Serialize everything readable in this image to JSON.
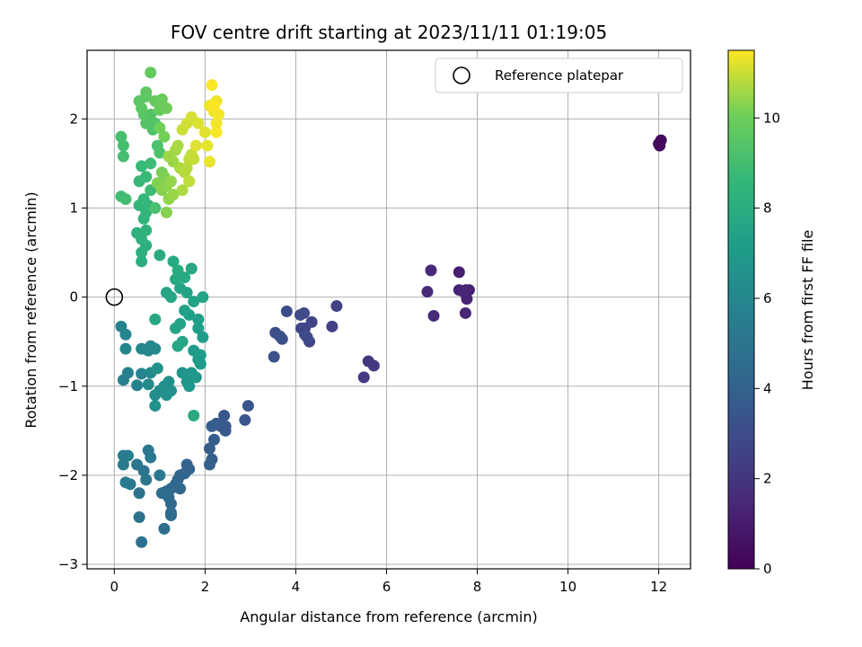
{
  "chart_data": {
    "type": "scatter",
    "title": "FOV centre drift starting at 2023/11/11 01:19:05",
    "xlabel": "Angular distance from reference (arcmin)",
    "ylabel": "Rotation from reference (arcmin)",
    "xlim": [
      -0.6,
      12.7
    ],
    "ylim": [
      -3.05,
      2.77
    ],
    "xticks": [
      0,
      2,
      4,
      6,
      8,
      10,
      12
    ],
    "yticks": [
      -3,
      -2,
      -1,
      0,
      1,
      2
    ],
    "grid": true,
    "legend": {
      "position": "top-right",
      "entries": [
        "Reference platepar"
      ]
    },
    "reference_point": {
      "x": 0,
      "y": 0
    },
    "colorbar": {
      "label": "Hours from first FF file",
      "colormap": "viridis",
      "range": [
        0,
        11.5
      ],
      "ticks": [
        0,
        2,
        4,
        6,
        8,
        10
      ]
    },
    "points": [
      {
        "x": 12.0,
        "y": 1.72,
        "h": 0.2
      },
      {
        "x": 12.05,
        "y": 1.76,
        "h": 0.25
      },
      {
        "x": 12.02,
        "y": 1.7,
        "h": 0.3
      },
      {
        "x": 7.6,
        "y": 0.28,
        "h": 1.1
      },
      {
        "x": 7.75,
        "y": 0.08,
        "h": 1.15
      },
      {
        "x": 7.82,
        "y": 0.08,
        "h": 1.2
      },
      {
        "x": 7.6,
        "y": 0.08,
        "h": 1.25
      },
      {
        "x": 7.77,
        "y": -0.02,
        "h": 1.3
      },
      {
        "x": 7.7,
        "y": 0.06,
        "h": 1.35
      },
      {
        "x": 7.74,
        "y": -0.18,
        "h": 1.4
      },
      {
        "x": 6.98,
        "y": 0.3,
        "h": 1.5
      },
      {
        "x": 6.9,
        "y": 0.06,
        "h": 1.55
      },
      {
        "x": 7.04,
        "y": -0.21,
        "h": 1.6
      },
      {
        "x": 5.6,
        "y": -0.72,
        "h": 2.1
      },
      {
        "x": 5.72,
        "y": -0.77,
        "h": 2.15
      },
      {
        "x": 5.5,
        "y": -0.9,
        "h": 2.2
      },
      {
        "x": 4.9,
        "y": -0.1,
        "h": 2.5
      },
      {
        "x": 4.8,
        "y": -0.33,
        "h": 2.55
      },
      {
        "x": 4.35,
        "y": -0.28,
        "h": 2.6
      },
      {
        "x": 4.2,
        "y": -0.35,
        "h": 2.65
      },
      {
        "x": 4.3,
        "y": -0.5,
        "h": 2.7
      },
      {
        "x": 4.12,
        "y": -0.35,
        "h": 2.75
      },
      {
        "x": 4.18,
        "y": -0.18,
        "h": 2.8
      },
      {
        "x": 4.2,
        "y": -0.42,
        "h": 2.85
      },
      {
        "x": 4.25,
        "y": -0.45,
        "h": 2.9
      },
      {
        "x": 4.1,
        "y": -0.2,
        "h": 2.95
      },
      {
        "x": 3.8,
        "y": -0.16,
        "h": 3.0
      },
      {
        "x": 3.55,
        "y": -0.4,
        "h": 3.05
      },
      {
        "x": 3.7,
        "y": -0.47,
        "h": 3.1
      },
      {
        "x": 3.65,
        "y": -0.44,
        "h": 3.15
      },
      {
        "x": 3.52,
        "y": -0.67,
        "h": 3.2
      },
      {
        "x": 2.95,
        "y": -1.22,
        "h": 3.4
      },
      {
        "x": 2.88,
        "y": -1.38,
        "h": 3.45
      },
      {
        "x": 2.42,
        "y": -1.33,
        "h": 3.5
      },
      {
        "x": 2.45,
        "y": -1.45,
        "h": 3.55
      },
      {
        "x": 2.45,
        "y": -1.5,
        "h": 3.6
      },
      {
        "x": 2.35,
        "y": -1.45,
        "h": 3.65
      },
      {
        "x": 2.25,
        "y": -1.42,
        "h": 3.7
      },
      {
        "x": 2.15,
        "y": -1.45,
        "h": 3.75
      },
      {
        "x": 2.2,
        "y": -1.6,
        "h": 3.8
      },
      {
        "x": 2.1,
        "y": -1.7,
        "h": 3.85
      },
      {
        "x": 2.15,
        "y": -1.82,
        "h": 3.9
      },
      {
        "x": 2.1,
        "y": -1.88,
        "h": 3.95
      },
      {
        "x": 1.6,
        "y": -1.88,
        "h": 4.0
      },
      {
        "x": 1.65,
        "y": -1.93,
        "h": 4.05
      },
      {
        "x": 1.55,
        "y": -1.98,
        "h": 4.1
      },
      {
        "x": 1.45,
        "y": -2.0,
        "h": 4.15
      },
      {
        "x": 1.4,
        "y": -2.05,
        "h": 4.2
      },
      {
        "x": 1.45,
        "y": -2.15,
        "h": 4.25
      },
      {
        "x": 1.35,
        "y": -2.1,
        "h": 4.3
      },
      {
        "x": 1.25,
        "y": -2.15,
        "h": 4.35
      },
      {
        "x": 1.15,
        "y": -2.18,
        "h": 4.4
      },
      {
        "x": 1.2,
        "y": -2.25,
        "h": 4.45
      },
      {
        "x": 1.25,
        "y": -2.32,
        "h": 4.5
      },
      {
        "x": 1.25,
        "y": -2.42,
        "h": 4.55
      },
      {
        "x": 1.25,
        "y": -2.45,
        "h": 4.6
      },
      {
        "x": 1.05,
        "y": -2.2,
        "h": 4.65
      },
      {
        "x": 1.1,
        "y": -2.6,
        "h": 4.7
      },
      {
        "x": 0.6,
        "y": -2.75,
        "h": 4.8
      },
      {
        "x": 0.55,
        "y": -2.47,
        "h": 4.85
      },
      {
        "x": 0.55,
        "y": -2.2,
        "h": 4.9
      },
      {
        "x": 0.65,
        "y": -1.95,
        "h": 4.95
      },
      {
        "x": 0.7,
        "y": -2.05,
        "h": 5.0
      },
      {
        "x": 0.5,
        "y": -1.88,
        "h": 5.05
      },
      {
        "x": 0.75,
        "y": -1.72,
        "h": 5.1
      },
      {
        "x": 0.8,
        "y": -1.8,
        "h": 5.15
      },
      {
        "x": 1.0,
        "y": -2.0,
        "h": 5.2
      },
      {
        "x": 0.35,
        "y": -2.1,
        "h": 5.25
      },
      {
        "x": 0.25,
        "y": -2.08,
        "h": 5.3
      },
      {
        "x": 0.2,
        "y": -1.88,
        "h": 5.35
      },
      {
        "x": 0.2,
        "y": -1.78,
        "h": 5.4
      },
      {
        "x": 0.3,
        "y": -1.78,
        "h": 5.45
      },
      {
        "x": 0.2,
        "y": -0.93,
        "h": 5.6
      },
      {
        "x": 0.3,
        "y": -0.85,
        "h": 5.65
      },
      {
        "x": 0.5,
        "y": -0.99,
        "h": 5.7
      },
      {
        "x": 0.6,
        "y": -0.86,
        "h": 5.75
      },
      {
        "x": 0.15,
        "y": -0.33,
        "h": 5.8
      },
      {
        "x": 0.25,
        "y": -0.42,
        "h": 5.85
      },
      {
        "x": 0.25,
        "y": -0.58,
        "h": 5.9
      },
      {
        "x": 0.6,
        "y": -0.58,
        "h": 5.95
      },
      {
        "x": 0.75,
        "y": -0.6,
        "h": 6.0
      },
      {
        "x": 0.8,
        "y": -0.55,
        "h": 6.05
      },
      {
        "x": 0.9,
        "y": -0.58,
        "h": 6.1
      },
      {
        "x": 0.8,
        "y": -0.85,
        "h": 6.15
      },
      {
        "x": 0.75,
        "y": -0.98,
        "h": 6.2
      },
      {
        "x": 0.9,
        "y": -1.1,
        "h": 6.25
      },
      {
        "x": 1.0,
        "y": -1.05,
        "h": 6.3
      },
      {
        "x": 1.1,
        "y": -1.0,
        "h": 6.35
      },
      {
        "x": 1.2,
        "y": -0.95,
        "h": 6.4
      },
      {
        "x": 1.15,
        "y": -1.1,
        "h": 6.45
      },
      {
        "x": 1.25,
        "y": -1.05,
        "h": 6.5
      },
      {
        "x": 0.95,
        "y": -0.8,
        "h": 6.55
      },
      {
        "x": 0.9,
        "y": -1.22,
        "h": 6.6
      },
      {
        "x": 1.5,
        "y": -0.85,
        "h": 6.7
      },
      {
        "x": 1.6,
        "y": -0.95,
        "h": 6.75
      },
      {
        "x": 1.65,
        "y": -1.0,
        "h": 6.8
      },
      {
        "x": 1.7,
        "y": -0.85,
        "h": 6.85
      },
      {
        "x": 1.8,
        "y": -0.9,
        "h": 6.9
      },
      {
        "x": 1.85,
        "y": -0.7,
        "h": 6.95
      },
      {
        "x": 1.75,
        "y": -0.6,
        "h": 7.0
      },
      {
        "x": 1.9,
        "y": -0.75,
        "h": 7.05
      },
      {
        "x": 1.9,
        "y": -0.65,
        "h": 7.1
      },
      {
        "x": 1.95,
        "y": -0.45,
        "h": 7.15
      },
      {
        "x": 1.85,
        "y": -0.35,
        "h": 7.2
      },
      {
        "x": 1.85,
        "y": -0.25,
        "h": 7.25
      },
      {
        "x": 1.65,
        "y": -0.2,
        "h": 7.3
      },
      {
        "x": 1.55,
        "y": -0.15,
        "h": 7.35
      },
      {
        "x": 1.75,
        "y": -0.05,
        "h": 7.4
      },
      {
        "x": 1.95,
        "y": 0.0,
        "h": 7.45
      },
      {
        "x": 1.45,
        "y": -0.3,
        "h": 7.5
      },
      {
        "x": 1.35,
        "y": -0.35,
        "h": 7.55
      },
      {
        "x": 1.5,
        "y": -0.5,
        "h": 7.6
      },
      {
        "x": 1.4,
        "y": -0.55,
        "h": 7.65
      },
      {
        "x": 0.9,
        "y": -0.25,
        "h": 7.7
      },
      {
        "x": 1.75,
        "y": -1.33,
        "h": 7.8
      },
      {
        "x": 1.6,
        "y": 0.05,
        "h": 7.5
      },
      {
        "x": 1.45,
        "y": 0.1,
        "h": 7.55
      },
      {
        "x": 1.15,
        "y": 0.05,
        "h": 7.6
      },
      {
        "x": 1.25,
        "y": 0.0,
        "h": 7.65
      },
      {
        "x": 1.7,
        "y": 0.32,
        "h": 7.7
      },
      {
        "x": 1.55,
        "y": 0.22,
        "h": 7.75
      },
      {
        "x": 1.35,
        "y": 0.2,
        "h": 7.8
      },
      {
        "x": 1.3,
        "y": 0.4,
        "h": 7.85
      },
      {
        "x": 1.4,
        "y": 0.3,
        "h": 7.9
      },
      {
        "x": 1.0,
        "y": 0.47,
        "h": 8.0
      },
      {
        "x": 0.6,
        "y": 0.4,
        "h": 8.1
      },
      {
        "x": 0.6,
        "y": 0.5,
        "h": 8.15
      },
      {
        "x": 0.7,
        "y": 0.58,
        "h": 8.2
      },
      {
        "x": 0.5,
        "y": 0.72,
        "h": 8.25
      },
      {
        "x": 0.6,
        "y": 0.65,
        "h": 8.3
      },
      {
        "x": 0.7,
        "y": 0.75,
        "h": 8.35
      },
      {
        "x": 0.65,
        "y": 0.88,
        "h": 8.4
      },
      {
        "x": 0.7,
        "y": 0.95,
        "h": 8.45
      },
      {
        "x": 0.75,
        "y": 1.03,
        "h": 8.5
      },
      {
        "x": 0.55,
        "y": 1.03,
        "h": 8.55
      },
      {
        "x": 0.65,
        "y": 1.1,
        "h": 8.6
      },
      {
        "x": 0.55,
        "y": 1.3,
        "h": 8.65
      },
      {
        "x": 0.6,
        "y": 1.47,
        "h": 8.7
      },
      {
        "x": 0.7,
        "y": 1.35,
        "h": 8.75
      },
      {
        "x": 0.8,
        "y": 1.2,
        "h": 8.8
      },
      {
        "x": 0.8,
        "y": 1.5,
        "h": 8.85
      },
      {
        "x": 0.15,
        "y": 1.13,
        "h": 8.9
      },
      {
        "x": 0.25,
        "y": 1.1,
        "h": 8.95
      },
      {
        "x": 0.2,
        "y": 1.58,
        "h": 9.0
      },
      {
        "x": 0.2,
        "y": 1.7,
        "h": 9.05
      },
      {
        "x": 0.15,
        "y": 1.8,
        "h": 9.1
      },
      {
        "x": 0.9,
        "y": 1.0,
        "h": 9.15
      },
      {
        "x": 0.95,
        "y": 1.7,
        "h": 9.2
      },
      {
        "x": 1.0,
        "y": 1.62,
        "h": 9.25
      },
      {
        "x": 0.85,
        "y": 1.88,
        "h": 9.3
      },
      {
        "x": 0.9,
        "y": 1.95,
        "h": 9.35
      },
      {
        "x": 0.8,
        "y": 2.05,
        "h": 9.4
      },
      {
        "x": 0.7,
        "y": 1.95,
        "h": 9.45
      },
      {
        "x": 0.65,
        "y": 2.05,
        "h": 9.5
      },
      {
        "x": 0.55,
        "y": 2.2,
        "h": 9.55
      },
      {
        "x": 0.6,
        "y": 2.12,
        "h": 9.6
      },
      {
        "x": 0.7,
        "y": 2.25,
        "h": 9.65
      },
      {
        "x": 0.7,
        "y": 2.3,
        "h": 9.7
      },
      {
        "x": 0.8,
        "y": 2.52,
        "h": 9.75
      },
      {
        "x": 0.9,
        "y": 2.2,
        "h": 9.8
      },
      {
        "x": 1.0,
        "y": 2.1,
        "h": 9.85
      },
      {
        "x": 1.05,
        "y": 2.22,
        "h": 9.9
      },
      {
        "x": 1.0,
        "y": 2.18,
        "h": 9.95
      },
      {
        "x": 1.15,
        "y": 2.12,
        "h": 10.0
      },
      {
        "x": 1.0,
        "y": 1.9,
        "h": 10.05
      },
      {
        "x": 1.1,
        "y": 1.8,
        "h": 10.1
      },
      {
        "x": 1.05,
        "y": 1.4,
        "h": 10.15
      },
      {
        "x": 1.1,
        "y": 1.35,
        "h": 10.2
      },
      {
        "x": 0.95,
        "y": 1.28,
        "h": 10.25
      },
      {
        "x": 1.05,
        "y": 1.2,
        "h": 10.3
      },
      {
        "x": 1.15,
        "y": 1.25,
        "h": 10.35
      },
      {
        "x": 1.2,
        "y": 1.1,
        "h": 10.4
      },
      {
        "x": 1.25,
        "y": 1.3,
        "h": 10.45
      },
      {
        "x": 1.3,
        "y": 1.52,
        "h": 10.5
      },
      {
        "x": 1.2,
        "y": 1.58,
        "h": 10.55
      },
      {
        "x": 1.35,
        "y": 1.65,
        "h": 10.6
      },
      {
        "x": 1.4,
        "y": 1.7,
        "h": 10.65
      },
      {
        "x": 1.45,
        "y": 1.45,
        "h": 10.7
      },
      {
        "x": 1.55,
        "y": 1.4,
        "h": 10.75
      },
      {
        "x": 1.6,
        "y": 1.45,
        "h": 10.8
      },
      {
        "x": 1.65,
        "y": 1.55,
        "h": 10.85
      },
      {
        "x": 1.7,
        "y": 1.6,
        "h": 10.9
      },
      {
        "x": 1.75,
        "y": 1.55,
        "h": 10.95
      },
      {
        "x": 1.5,
        "y": 1.88,
        "h": 11.0
      },
      {
        "x": 1.6,
        "y": 1.95,
        "h": 11.05
      },
      {
        "x": 1.7,
        "y": 2.02,
        "h": 11.1
      },
      {
        "x": 1.85,
        "y": 1.95,
        "h": 11.15
      },
      {
        "x": 2.0,
        "y": 1.85,
        "h": 11.2
      },
      {
        "x": 2.05,
        "y": 1.7,
        "h": 11.25
      },
      {
        "x": 2.1,
        "y": 1.52,
        "h": 11.3
      },
      {
        "x": 2.1,
        "y": 2.15,
        "h": 11.3
      },
      {
        "x": 2.2,
        "y": 2.08,
        "h": 11.35
      },
      {
        "x": 2.25,
        "y": 2.2,
        "h": 11.35
      },
      {
        "x": 2.3,
        "y": 2.05,
        "h": 11.4
      },
      {
        "x": 2.25,
        "y": 1.95,
        "h": 11.4
      },
      {
        "x": 2.15,
        "y": 2.38,
        "h": 11.45
      },
      {
        "x": 2.2,
        "y": 2.15,
        "h": 11.45
      },
      {
        "x": 2.25,
        "y": 1.85,
        "h": 11.45
      },
      {
        "x": 1.8,
        "y": 1.7,
        "h": 11.2
      },
      {
        "x": 1.65,
        "y": 1.3,
        "h": 10.9
      },
      {
        "x": 1.5,
        "y": 1.2,
        "h": 10.7
      },
      {
        "x": 1.3,
        "y": 1.15,
        "h": 10.5
      },
      {
        "x": 1.15,
        "y": 0.95,
        "h": 10.3
      }
    ]
  }
}
